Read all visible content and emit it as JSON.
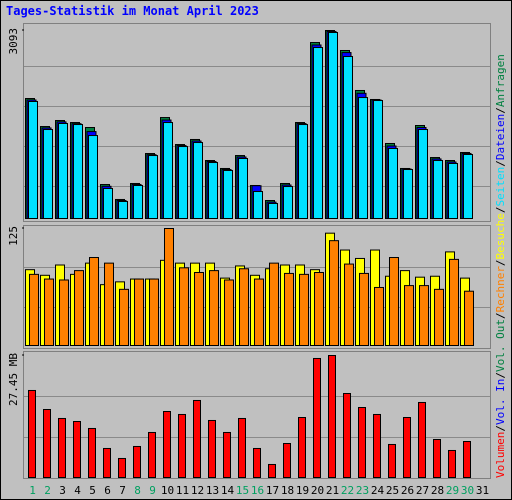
{
  "title": "Tages-Statistik im Monat April 2023",
  "legend_separator": "/",
  "weekend_color": "#00A060",
  "weekend_indices": [
    0,
    1,
    7,
    8,
    14,
    15,
    21,
    22,
    28,
    29
  ],
  "chart_data": [
    {
      "type": "bar",
      "ylim": [
        0,
        3093
      ],
      "yticks": [
        3093
      ],
      "series": [
        {
          "name": "Anfragen",
          "color": "#008040",
          "values": [
            1974,
            1513,
            1612,
            1579,
            1497,
            559,
            313,
            576,
            1069,
            1661,
            1217,
            1300,
            954,
            823,
            1036,
            543,
            296,
            576,
            1579,
            2895,
            3093,
            2764,
            2106,
            1958,
            1234,
            823,
            1530,
            1003,
            954,
            1086,
            null
          ]
        },
        {
          "name": "Dateien",
          "color": "#0000FF",
          "values": [
            1950,
            1490,
            1590,
            1560,
            1430,
            530,
            296,
            560,
            1050,
            1620,
            1200,
            1275,
            938,
            806,
            1012,
            540,
            270,
            551,
            1562,
            2855,
            3077,
            2730,
            2060,
            1950,
            1193,
            815,
            1497,
            980,
            930,
            1070,
            null
          ]
        },
        {
          "name": "Seiten",
          "color": "#00E0FF",
          "values": [
            1925,
            1464,
            1563,
            1546,
            1365,
            494,
            280,
            543,
            1036,
            1579,
            1184,
            1250,
            921,
            790,
            987,
            444,
            247,
            526,
            1546,
            2813,
            3060,
            2665,
            1990,
            1941,
            1152,
            806,
            1464,
            954,
            905,
            1053,
            null
          ]
        }
      ]
    },
    {
      "type": "bar",
      "ylim": [
        0,
        125
      ],
      "yticks": [
        125
      ],
      "series": [
        {
          "name": "Besuche",
          "color": "#FFFF00",
          "values": [
            81,
            75,
            86,
            76,
            88,
            65,
            68,
            71,
            71,
            91,
            88,
            88,
            88,
            72,
            85,
            75,
            82,
            86,
            86,
            81,
            120,
            102,
            93,
            102,
            74,
            80,
            73,
            74,
            100,
            72,
            null
          ]
        },
        {
          "name": "Rechner",
          "color": "#FF8000",
          "values": [
            76,
            71,
            70,
            80,
            94,
            88,
            60,
            71,
            71,
            125,
            83,
            78,
            80,
            70,
            82,
            71,
            88,
            77,
            76,
            78,
            112,
            87,
            77,
            62,
            94,
            64,
            64,
            60,
            92,
            58,
            null
          ]
        }
      ]
    },
    {
      "type": "bar",
      "ylim": [
        0,
        27.45
      ],
      "yticks": [
        {
          "value": 27.45,
          "label": "27.45 MB"
        }
      ],
      "categories": [
        "1",
        "2",
        "3",
        "4",
        "5",
        "6",
        "7",
        "8",
        "9",
        "10",
        "11",
        "12",
        "13",
        "14",
        "15",
        "16",
        "17",
        "18",
        "19",
        "20",
        "21",
        "22",
        "23",
        "24",
        "25",
        "26",
        "27",
        "28",
        "29",
        "30",
        "31"
      ],
      "series": [
        {
          "name": "Volumen",
          "color": "#FF0000",
          "values": [
            19.58,
            15.3,
            13.28,
            12.6,
            11.03,
            6.53,
            4.28,
            6.98,
            10.13,
            14.85,
            14.18,
            17.33,
            12.83,
            10.13,
            13.28,
            6.53,
            2.93,
            7.65,
            13.5,
            26.78,
            27.45,
            18.9,
            15.75,
            14.18,
            7.43,
            13.5,
            16.88,
            8.55,
            6.08,
            8.1,
            null
          ]
        },
        {
          "name": "Vol. In",
          "color": "#0000FF",
          "values": [
            null,
            null,
            null,
            null,
            null,
            null,
            null,
            null,
            null,
            null,
            null,
            null,
            null,
            null,
            null,
            null,
            null,
            null,
            null,
            null,
            null,
            null,
            null,
            null,
            null,
            null,
            null,
            null,
            null,
            null,
            null
          ]
        },
        {
          "name": "Vol. Out",
          "color": "#008040",
          "values": [
            null,
            null,
            null,
            null,
            null,
            null,
            null,
            null,
            null,
            null,
            null,
            null,
            null,
            null,
            null,
            null,
            null,
            null,
            null,
            null,
            null,
            null,
            null,
            null,
            null,
            null,
            null,
            null,
            null,
            null,
            null
          ]
        }
      ]
    }
  ]
}
